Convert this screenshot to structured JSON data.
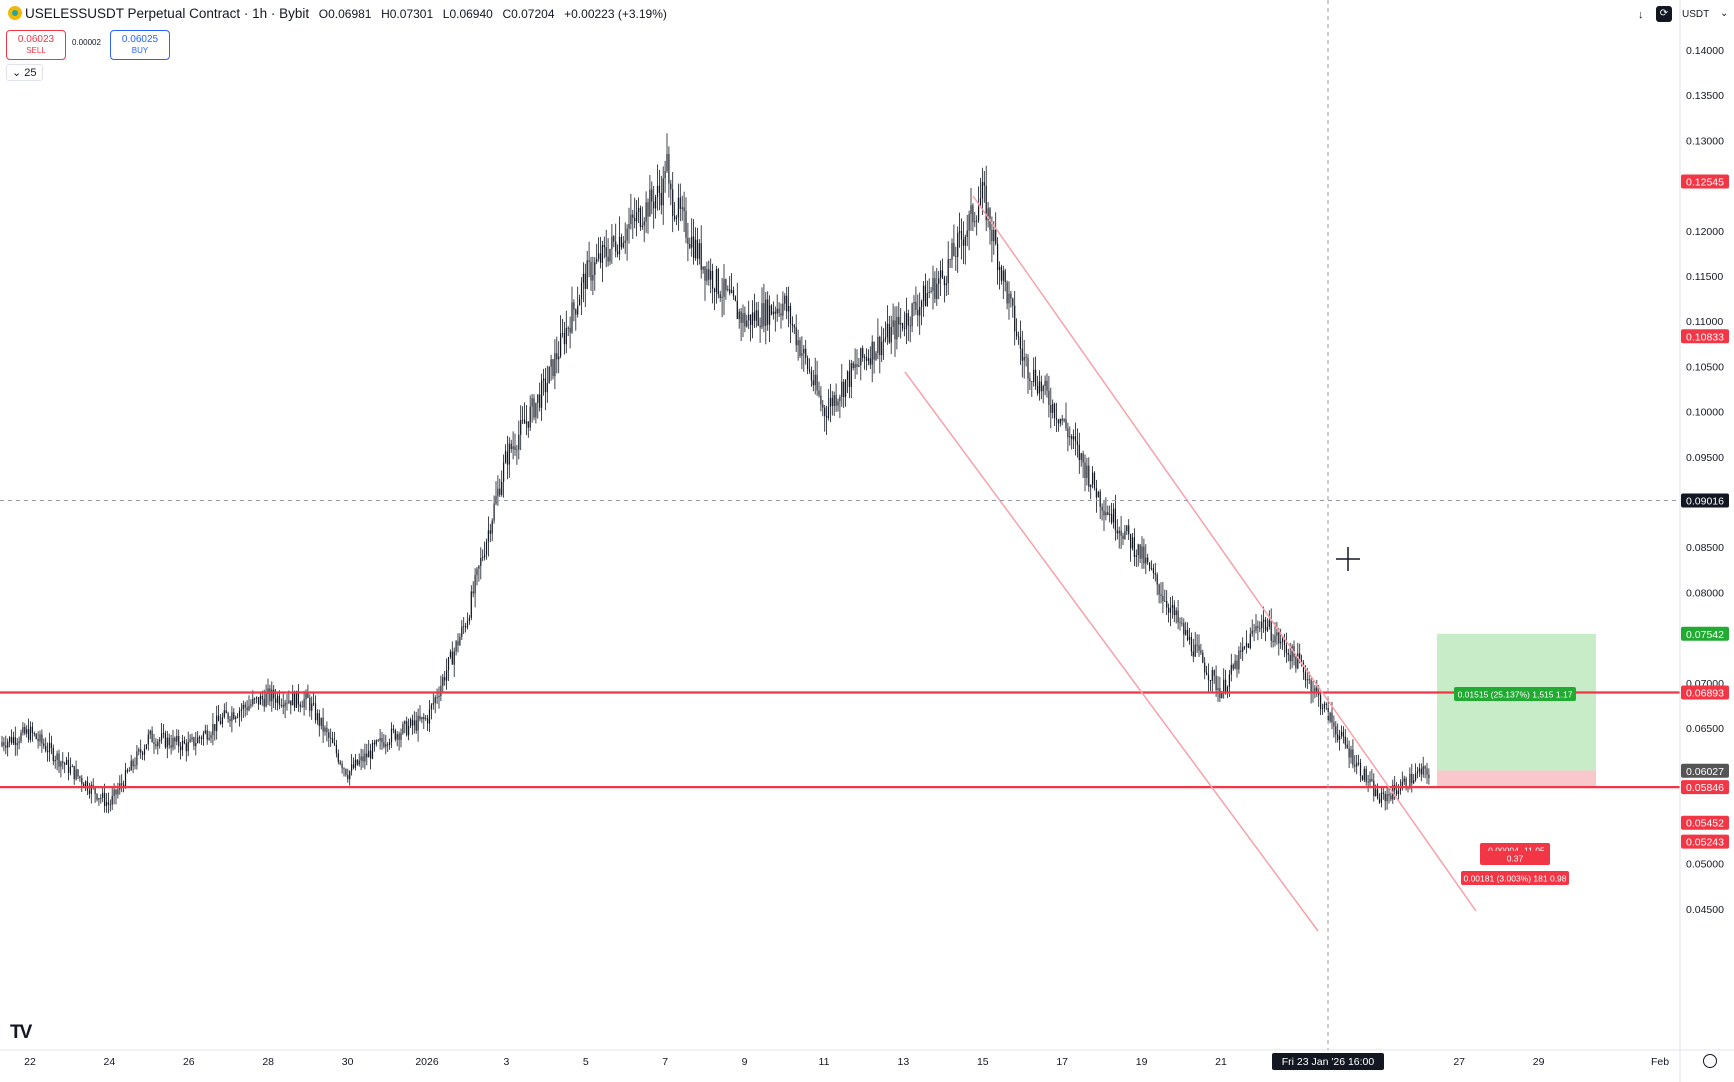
{
  "header": {
    "symbol": "USELESSUSDT Perpetual Contract · 1h · Bybit",
    "open": "O0.06981",
    "high": "H0.07301",
    "low": "L0.06940",
    "close": "C0.07204",
    "change": "+0.00223 (+3.19%)",
    "logo_icon": "exchange-logo-icon"
  },
  "trade": {
    "sell_price": "0.06023",
    "sell_label": "SELL",
    "spread": "0.00002",
    "buy_price": "0.06025",
    "buy_label": "BUY"
  },
  "volume_toggle": "⌄ 25",
  "top_right": {
    "download_icon": "↓",
    "sync_icon": "⟳",
    "currency": "USDT",
    "currency_arrow": "⌄"
  },
  "price_axis": {
    "ticks": [
      "0.14000",
      "0.13500",
      "0.13000",
      "0.12000",
      "0.11500",
      "0.11000",
      "0.10500",
      "0.10000",
      "0.09500",
      "0.08500",
      "0.08000",
      "0.07000",
      "0.06500",
      "0.05000",
      "0.04500"
    ],
    "tick_values": [
      0.14,
      0.135,
      0.13,
      0.12,
      0.115,
      0.11,
      0.105,
      0.1,
      0.095,
      0.085,
      0.08,
      0.07,
      0.065,
      0.05,
      0.045
    ],
    "labels": [
      {
        "text": "0.12545",
        "value": 0.12545,
        "color": "#f23645"
      },
      {
        "text": "0.10833",
        "value": 0.10833,
        "color": "#f23645"
      },
      {
        "text": "0.09016",
        "value": 0.09016,
        "color": "#131722"
      },
      {
        "text": "0.07542",
        "value": 0.07542,
        "color": "#22ab33"
      },
      {
        "text": "0.06893",
        "value": 0.06893,
        "color": "#f23645"
      },
      {
        "text": "0.06027",
        "value": 0.06027,
        "color": "#555555"
      },
      {
        "text": "0.05846",
        "value": 0.05846,
        "color": "#f23645"
      },
      {
        "text": "0.05452",
        "value": 0.05452,
        "color": "#f23645"
      },
      {
        "text": "0.05243",
        "value": 0.05243,
        "color": "#f23645"
      }
    ]
  },
  "time_axis": {
    "ticks": [
      "22",
      "24",
      "26",
      "28",
      "30",
      "2026",
      "3",
      "5",
      "7",
      "9",
      "11",
      "13",
      "15",
      "17",
      "19",
      "21",
      "27",
      "29",
      "Feb"
    ],
    "crosshair_label": "Fri 23 Jan '26   16:00"
  },
  "position_tool": {
    "target_label": "0.01515 (25.137%) 1,515 1.17",
    "mid_label_1": "-0.00004 -11.05",
    "mid_label_2": "0.37",
    "stop_label": "0.00181 (3.003%) 181 0.98"
  },
  "horizontal_levels": [
    0.06893,
    0.05846
  ],
  "colors": {
    "level_line": "#f23645",
    "channel": "#f7a1ab",
    "target_zone": "#c8ebc8",
    "stop_zone": "#f9c8cc",
    "candles": "#131722"
  },
  "chart_data": {
    "type": "candlestick",
    "title": "USELESSUSDT Perpetual Contract · 1h · Bybit",
    "xlabel": "",
    "ylabel": "",
    "ylim": [
      0.042,
      0.142
    ],
    "log_scale": false,
    "grid": false,
    "x_range": [
      "Dec 21 2025",
      "Feb 1 2026"
    ],
    "price_path": [
      {
        "d": "Dec 21",
        "p": 0.063
      },
      {
        "d": "Dec 22",
        "p": 0.0645
      },
      {
        "d": "Dec 23",
        "p": 0.0605
      },
      {
        "d": "Dec 24",
        "p": 0.0565
      },
      {
        "d": "Dec 25",
        "p": 0.064
      },
      {
        "d": "Dec 26",
        "p": 0.063
      },
      {
        "d": "Dec 27",
        "p": 0.0665
      },
      {
        "d": "Dec 28",
        "p": 0.0685
      },
      {
        "d": "Dec 29",
        "p": 0.068
      },
      {
        "d": "Dec 30",
        "p": 0.06
      },
      {
        "d": "Dec 31",
        "p": 0.064
      },
      {
        "d": "Jan 1",
        "p": 0.066
      },
      {
        "d": "Jan 2",
        "p": 0.077
      },
      {
        "d": "Jan 3",
        "p": 0.095
      },
      {
        "d": "Jan 4",
        "p": 0.103
      },
      {
        "d": "Jan 5",
        "p": 0.115
      },
      {
        "d": "Jan 6",
        "p": 0.12
      },
      {
        "d": "Jan 7",
        "p": 0.125
      },
      {
        "d": "Jan 8",
        "p": 0.116
      },
      {
        "d": "Jan 9",
        "p": 0.11
      },
      {
        "d": "Jan 10",
        "p": 0.112
      },
      {
        "d": "Jan 11",
        "p": 0.1
      },
      {
        "d": "Jan 12",
        "p": 0.106
      },
      {
        "d": "Jan 13",
        "p": 0.11
      },
      {
        "d": "Jan 14",
        "p": 0.115
      },
      {
        "d": "Jan 15",
        "p": 0.124
      },
      {
        "d": "Jan 16",
        "p": 0.106
      },
      {
        "d": "Jan 17",
        "p": 0.099
      },
      {
        "d": "Jan 18",
        "p": 0.09
      },
      {
        "d": "Jan 19",
        "p": 0.084
      },
      {
        "d": "Jan 20",
        "p": 0.076
      },
      {
        "d": "Jan 21",
        "p": 0.069
      },
      {
        "d": "Jan 22",
        "p": 0.077
      },
      {
        "d": "Jan 23",
        "p": 0.072
      },
      {
        "d": "Jan 24",
        "p": 0.064
      },
      {
        "d": "Jan 25",
        "p": 0.057
      },
      {
        "d": "Jan 26",
        "p": 0.06
      }
    ],
    "swing_high": 0.1315,
    "swing_low": 0.0555
  }
}
